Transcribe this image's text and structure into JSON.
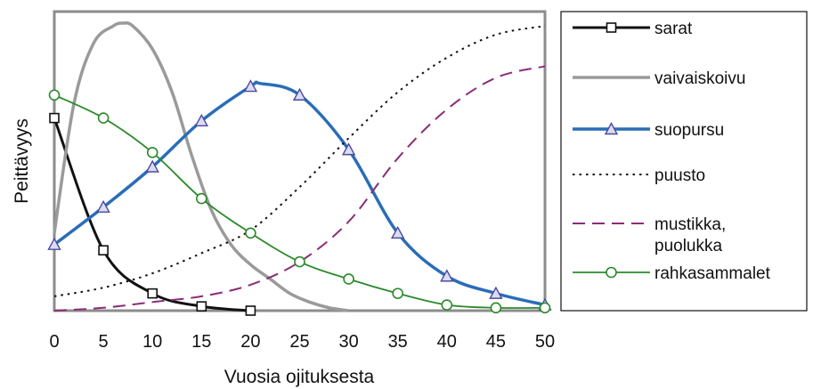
{
  "chart_data": {
    "type": "line",
    "title": "",
    "xlabel": "Vuosia ojituksesta",
    "ylabel": "Peittävyys",
    "xlim": [
      0,
      50
    ],
    "ylim": [
      0,
      100
    ],
    "x_ticks": [
      "0",
      "5",
      "10",
      "15",
      "20",
      "25",
      "30",
      "35",
      "40",
      "45",
      "50"
    ],
    "grid": false,
    "legend_position": "right",
    "series": [
      {
        "name": "sarat",
        "color": "#111111",
        "style": "solid-square-markers",
        "x": [
          0,
          5,
          10,
          15,
          20
        ],
        "y": [
          67,
          21,
          6,
          1.5,
          0
        ]
      },
      {
        "name": "vaivaiskoivu",
        "color": "#9a9a9a",
        "style": "solid",
        "x": [
          0,
          2,
          4,
          6,
          7,
          8,
          10,
          12,
          14,
          16,
          18,
          20,
          22,
          24,
          26,
          28,
          30
        ],
        "y": [
          27,
          72,
          93,
          99,
          100,
          99,
          91,
          76,
          54,
          35,
          23,
          16,
          11,
          6,
          3,
          1,
          0
        ]
      },
      {
        "name": "suopursu",
        "color": "#2a6db8",
        "style": "solid-triangle-markers",
        "x": [
          0,
          5,
          10,
          15,
          20,
          21,
          25,
          30,
          35,
          40,
          45,
          50
        ],
        "y": [
          23,
          36,
          50,
          66,
          78,
          79,
          75,
          56,
          27,
          12,
          6,
          2
        ]
      },
      {
        "name": "puusto",
        "color": "#111111",
        "style": "dotted",
        "x": [
          0,
          5,
          10,
          15,
          20,
          25,
          30,
          35,
          40,
          45,
          50
        ],
        "y": [
          5,
          8,
          13,
          20,
          28,
          43,
          60,
          76,
          88,
          96,
          99
        ]
      },
      {
        "name": "mustikka, puolukka",
        "color": "#8a2c78",
        "style": "dashed",
        "x": [
          0,
          5,
          10,
          15,
          20,
          25,
          30,
          35,
          40,
          45,
          50
        ],
        "y": [
          0,
          1,
          3,
          5,
          9,
          17,
          31,
          53,
          70,
          81,
          85
        ]
      },
      {
        "name": "rahkasammalet",
        "color": "#2b8a2b",
        "style": "solid-circle-markers",
        "x": [
          0,
          5,
          10,
          15,
          20,
          25,
          30,
          35,
          40,
          45,
          50
        ],
        "y": [
          75,
          67,
          55,
          39,
          27,
          17,
          11,
          6,
          2,
          1,
          1
        ]
      }
    ]
  }
}
